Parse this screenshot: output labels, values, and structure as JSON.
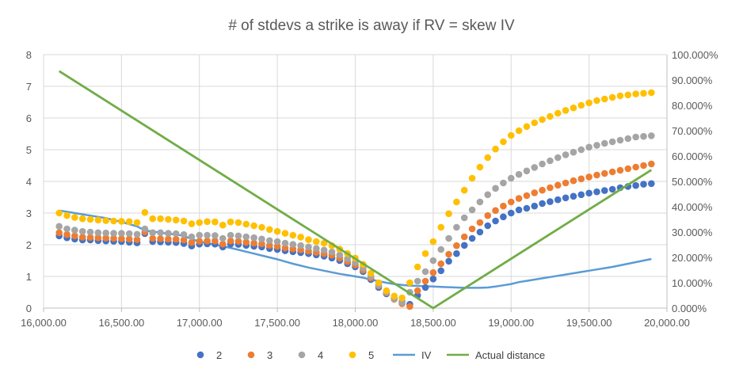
{
  "chart_data": {
    "type": "scatter",
    "title": "# of stdevs a strike is away if RV = skew IV",
    "legend_position": "bottom",
    "grid": true,
    "x_axis": {
      "min": 16000,
      "max": 20000,
      "ticks": [
        16000,
        16500,
        17000,
        17500,
        18000,
        18500,
        19000,
        19500,
        20000
      ],
      "tick_labels": [
        "16,000.00",
        "16,500.00",
        "17,000.00",
        "17,500.00",
        "18,000.00",
        "18,500.00",
        "19,000.00",
        "19,500.00",
        "20,000.00"
      ]
    },
    "y_axis_left": {
      "min": 0,
      "max": 8,
      "ticks": [
        0,
        1,
        2,
        3,
        4,
        5,
        6,
        7,
        8
      ],
      "tick_labels": [
        "0",
        "1",
        "2",
        "3",
        "4",
        "5",
        "6",
        "7",
        "8"
      ]
    },
    "y_axis_right": {
      "min": 0,
      "max": 1,
      "ticks": [
        0,
        0.1,
        0.2,
        0.3,
        0.4,
        0.5,
        0.6,
        0.7,
        0.8,
        0.9,
        1.0
      ],
      "tick_labels": [
        "0.000%",
        "10.000%",
        "20.000%",
        "30.000%",
        "40.000%",
        "50.000%",
        "60.000%",
        "70.000%",
        "80.000%",
        "90.000%",
        "100.000%"
      ]
    },
    "x": [
      16100,
      16150,
      16200,
      16250,
      16300,
      16350,
      16400,
      16450,
      16500,
      16550,
      16600,
      16650,
      16700,
      16750,
      16800,
      16850,
      16900,
      16950,
      17000,
      17050,
      17100,
      17150,
      17200,
      17250,
      17300,
      17350,
      17400,
      17450,
      17500,
      17550,
      17600,
      17650,
      17700,
      17750,
      17800,
      17850,
      17900,
      17950,
      18000,
      18050,
      18100,
      18150,
      18200,
      18250,
      18300,
      18350,
      18400,
      18450,
      18500,
      18550,
      18600,
      18650,
      18700,
      18750,
      18800,
      18850,
      18900,
      18950,
      19000,
      19050,
      19100,
      19150,
      19200,
      19250,
      19300,
      19350,
      19400,
      19450,
      19500,
      19550,
      19600,
      19650,
      19700,
      19750,
      19800,
      19850,
      19900
    ],
    "series": [
      {
        "name": "2",
        "type": "scatter",
        "axis": "left",
        "color": "#4472C4",
        "values": [
          2.28,
          2.22,
          2.18,
          2.15,
          2.15,
          2.13,
          2.12,
          2.11,
          2.1,
          2.08,
          2.06,
          2.35,
          2.1,
          2.09,
          2.08,
          2.07,
          2.04,
          1.96,
          2.02,
          2.03,
          2.02,
          1.93,
          2.02,
          2.01,
          1.98,
          1.95,
          1.93,
          1.88,
          1.85,
          1.81,
          1.78,
          1.75,
          1.72,
          1.68,
          1.64,
          1.58,
          1.5,
          1.4,
          1.3,
          1.15,
          0.9,
          0.65,
          0.45,
          0.3,
          0.2,
          0.12,
          0.4,
          0.65,
          0.92,
          1.18,
          1.48,
          1.72,
          1.98,
          2.2,
          2.4,
          2.6,
          2.75,
          2.88,
          3.0,
          3.1,
          3.15,
          3.22,
          3.3,
          3.36,
          3.42,
          3.48,
          3.53,
          3.58,
          3.63,
          3.67,
          3.71,
          3.75,
          3.8,
          3.84,
          3.87,
          3.91,
          3.93
        ]
      },
      {
        "name": "3",
        "type": "scatter",
        "axis": "left",
        "color": "#ED7D31",
        "values": [
          2.38,
          2.32,
          2.28,
          2.24,
          2.23,
          2.22,
          2.21,
          2.2,
          2.19,
          2.18,
          2.16,
          2.4,
          2.2,
          2.19,
          2.18,
          2.17,
          2.15,
          2.07,
          2.11,
          2.12,
          2.12,
          2.02,
          2.12,
          2.11,
          2.08,
          2.05,
          2.03,
          1.98,
          1.95,
          1.9,
          1.87,
          1.84,
          1.8,
          1.76,
          1.72,
          1.67,
          1.58,
          1.47,
          1.36,
          1.2,
          0.95,
          0.7,
          0.48,
          0.28,
          0.14,
          0.05,
          0.55,
          0.85,
          1.12,
          1.4,
          1.7,
          1.97,
          2.25,
          2.5,
          2.7,
          2.92,
          3.08,
          3.22,
          3.35,
          3.46,
          3.55,
          3.64,
          3.72,
          3.8,
          3.88,
          3.95,
          4.02,
          4.08,
          4.14,
          4.2,
          4.25,
          4.3,
          4.35,
          4.4,
          4.45,
          4.5,
          4.55
        ]
      },
      {
        "name": "4",
        "type": "scatter",
        "axis": "left",
        "color": "#A5A5A5",
        "values": [
          2.58,
          2.5,
          2.46,
          2.42,
          2.4,
          2.38,
          2.37,
          2.36,
          2.36,
          2.35,
          2.33,
          2.5,
          2.38,
          2.38,
          2.36,
          2.35,
          2.32,
          2.25,
          2.3,
          2.3,
          2.29,
          2.2,
          2.3,
          2.28,
          2.25,
          2.22,
          2.18,
          2.13,
          2.1,
          2.05,
          2.01,
          1.97,
          1.93,
          1.88,
          1.83,
          1.77,
          1.68,
          1.56,
          1.44,
          1.27,
          1.0,
          0.72,
          0.5,
          0.3,
          0.18,
          0.5,
          0.85,
          1.15,
          1.5,
          1.85,
          2.2,
          2.55,
          2.85,
          3.1,
          3.35,
          3.58,
          3.78,
          3.95,
          4.1,
          4.22,
          4.33,
          4.44,
          4.55,
          4.65,
          4.75,
          4.84,
          4.92,
          5.0,
          5.08,
          5.14,
          5.2,
          5.25,
          5.3,
          5.35,
          5.4,
          5.42,
          5.44
        ]
      },
      {
        "name": "5",
        "type": "scatter",
        "axis": "left",
        "color": "#FFC000",
        "values": [
          3.0,
          2.92,
          2.86,
          2.82,
          2.8,
          2.78,
          2.76,
          2.75,
          2.74,
          2.73,
          2.7,
          3.02,
          2.82,
          2.82,
          2.8,
          2.78,
          2.75,
          2.66,
          2.7,
          2.73,
          2.72,
          2.62,
          2.72,
          2.7,
          2.65,
          2.6,
          2.55,
          2.48,
          2.42,
          2.36,
          2.3,
          2.24,
          2.16,
          2.1,
          2.05,
          1.97,
          1.86,
          1.72,
          1.58,
          1.38,
          1.1,
          0.8,
          0.55,
          0.38,
          0.32,
          0.8,
          1.3,
          1.72,
          2.1,
          2.55,
          2.98,
          3.35,
          3.72,
          4.1,
          4.45,
          4.75,
          5.02,
          5.25,
          5.45,
          5.6,
          5.73,
          5.85,
          5.95,
          6.05,
          6.15,
          6.24,
          6.32,
          6.4,
          6.48,
          6.55,
          6.6,
          6.65,
          6.7,
          6.73,
          6.76,
          6.78,
          6.8
        ]
      },
      {
        "name": "IV",
        "type": "line",
        "axis": "left",
        "color": "#5B9BD5",
        "values": [
          3.08,
          3.04,
          3.0,
          2.96,
          2.92,
          2.88,
          2.84,
          2.78,
          2.72,
          2.65,
          2.58,
          2.45,
          2.42,
          2.38,
          2.35,
          2.32,
          2.28,
          2.18,
          2.1,
          2.05,
          2.0,
          1.95,
          1.9,
          1.84,
          1.78,
          1.72,
          1.66,
          1.6,
          1.54,
          1.47,
          1.4,
          1.34,
          1.28,
          1.23,
          1.18,
          1.13,
          1.08,
          1.04,
          1.0,
          0.96,
          0.9,
          0.85,
          0.8,
          0.76,
          0.73,
          0.71,
          0.7,
          0.69,
          0.68,
          0.67,
          0.66,
          0.65,
          0.64,
          0.64,
          0.64,
          0.65,
          0.68,
          0.72,
          0.76,
          0.82,
          0.86,
          0.9,
          0.94,
          0.98,
          1.02,
          1.06,
          1.1,
          1.14,
          1.18,
          1.22,
          1.26,
          1.3,
          1.35,
          1.4,
          1.45,
          1.5,
          1.55
        ]
      }
    ],
    "actual_distance": {
      "name": "Actual distance",
      "type": "line",
      "axis": "right",
      "color": "#70AD47",
      "x": [
        16100,
        18500,
        19900
      ],
      "values": [
        0.935,
        0.0,
        0.545
      ]
    }
  }
}
